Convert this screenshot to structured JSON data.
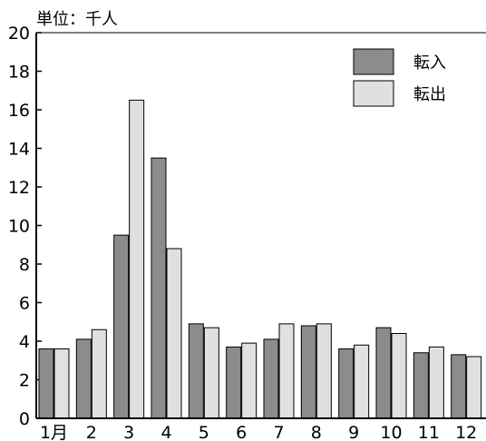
{
  "chart_data": {
    "type": "bar",
    "unit_label": "単位：千人",
    "categories": [
      "1月",
      "2",
      "3",
      "4",
      "5",
      "6",
      "7",
      "8",
      "9",
      "10",
      "11",
      "12"
    ],
    "series": [
      {
        "name": "転入",
        "color": "#8c8c8c",
        "values": [
          3.6,
          4.1,
          9.5,
          13.5,
          4.9,
          3.7,
          4.1,
          4.8,
          3.6,
          4.7,
          3.4,
          3.3
        ]
      },
      {
        "name": "転出",
        "color": "#e0e0e0",
        "values": [
          3.6,
          4.6,
          16.5,
          8.8,
          4.7,
          3.9,
          4.9,
          4.9,
          3.8,
          4.4,
          3.7,
          3.2
        ]
      }
    ],
    "ylim": [
      0,
      20
    ],
    "yticks": [
      0,
      2,
      4,
      6,
      8,
      10,
      12,
      14,
      16,
      18,
      20
    ],
    "legend_position": "top-right",
    "grid": false
  }
}
